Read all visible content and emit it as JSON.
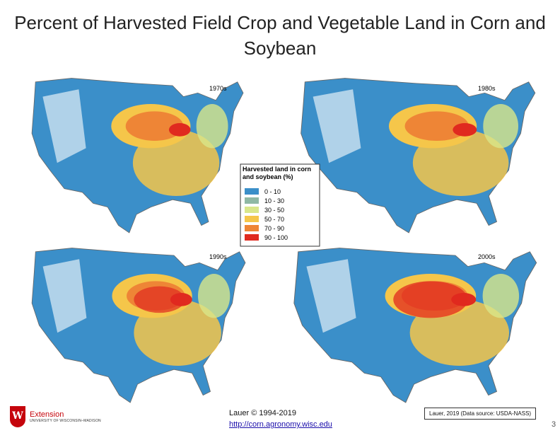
{
  "header": {
    "title": "Percent of Harvested Field Crop and Vegetable Land in Corn and Soybean"
  },
  "maps": [
    {
      "label": "1970s"
    },
    {
      "label": "1980s"
    },
    {
      "label": "1990s"
    },
    {
      "label": "2000s"
    }
  ],
  "legend": {
    "title": "Harvested land in corn and soybean (%)",
    "items": [
      {
        "label": "0 - 10",
        "color": "#3b8fc9"
      },
      {
        "label": "10 - 30",
        "color": "#8fb8a4"
      },
      {
        "label": "30 - 50",
        "color": "#d9e68a"
      },
      {
        "label": "50 - 70",
        "color": "#f5c64a"
      },
      {
        "label": "70 - 90",
        "color": "#ee8536"
      },
      {
        "label": "90 - 100",
        "color": "#e02a1f"
      }
    ]
  },
  "footer": {
    "credit": "Lauer © 1994-2019",
    "url": "http://corn.agronomy.wisc.edu",
    "source": "Lauer, 2019 (Data source: USDA-NASS)",
    "page": "3",
    "logo_name": "Extension",
    "logo_university": "UNIVERSITY OF WISCONSIN–MADISON"
  }
}
